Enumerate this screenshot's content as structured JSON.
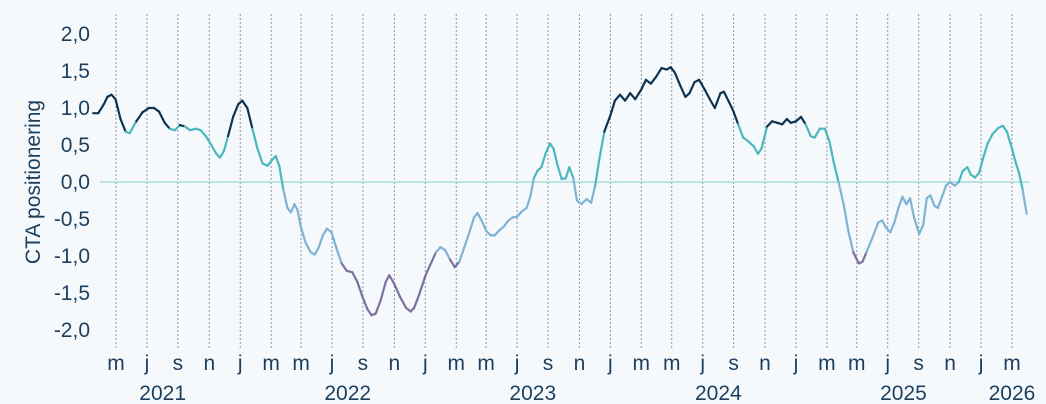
{
  "chart_data": {
    "type": "line",
    "ylabel": "CTA positionering",
    "xlabel": "",
    "ylim": [
      -2.0,
      2.0
    ],
    "y_ticks": [
      "2,0",
      "1,5",
      "1,0",
      "0,5",
      "0,0",
      "-0,5",
      "-1,0",
      "-1,5",
      "-2,0"
    ],
    "month_ticks": [
      {
        "label": "m",
        "date": "2021-03"
      },
      {
        "label": "j",
        "date": "2021-05"
      },
      {
        "label": "s",
        "date": "2021-07"
      },
      {
        "label": "n",
        "date": "2021-09"
      },
      {
        "label": "j",
        "date": "2021-11"
      },
      {
        "label": "m",
        "date": "2022-01"
      },
      {
        "label": "m",
        "date": "2022-03"
      },
      {
        "label": "j",
        "date": "2022-05"
      },
      {
        "label": "s",
        "date": "2022-07"
      },
      {
        "label": "n",
        "date": "2022-09"
      },
      {
        "label": "j",
        "date": "2022-11"
      },
      {
        "label": "m",
        "date": "2023-01"
      },
      {
        "label": "m",
        "date": "2023-03"
      },
      {
        "label": "j",
        "date": "2023-05"
      },
      {
        "label": "s",
        "date": "2023-07"
      },
      {
        "label": "n",
        "date": "2023-09"
      },
      {
        "label": "j",
        "date": "2023-11"
      },
      {
        "label": "m",
        "date": "2024-01"
      },
      {
        "label": "m",
        "date": "2024-03"
      },
      {
        "label": "j",
        "date": "2024-05"
      },
      {
        "label": "s",
        "date": "2024-07"
      },
      {
        "label": "n",
        "date": "2024-09"
      },
      {
        "label": "j",
        "date": "2024-11"
      },
      {
        "label": "m",
        "date": "2025-01"
      },
      {
        "label": "m",
        "date": "2025-03"
      },
      {
        "label": "j",
        "date": "2025-05"
      },
      {
        "label": "s",
        "date": "2025-07"
      },
      {
        "label": "n",
        "date": "2025-09"
      },
      {
        "label": "j",
        "date": "2025-11"
      },
      {
        "label": "m",
        "date": "2026-01"
      }
    ],
    "year_labels": [
      {
        "label": "2021",
        "date": "2021-06"
      },
      {
        "label": "2022",
        "date": "2022-06"
      },
      {
        "label": "2023",
        "date": "2023-06"
      },
      {
        "label": "2024",
        "date": "2024-06"
      },
      {
        "label": "2025",
        "date": "2025-06"
      },
      {
        "label": "2026",
        "date": "2026-01"
      }
    ],
    "x_range": [
      "2021-01-15",
      "2026-01-31"
    ],
    "grid": "vertical dotted at month ticks",
    "zero_line": true,
    "colors": {
      "strong_long": "#0d3350",
      "moderate_long": "#4ab8bd",
      "moderate_short": "#7fb3d6",
      "strong_short": "#7d6fa0",
      "zero_line": "#a8dcdc",
      "grid": "#8a96a3",
      "text": "#1d3f5e"
    },
    "series": [
      {
        "values": [
          [
            "2021-01-15",
            0.93
          ],
          [
            "2021-01-25",
            0.93
          ],
          [
            "2021-02-05",
            1.05
          ],
          [
            "2021-02-12",
            1.15
          ],
          [
            "2021-02-20",
            1.18
          ],
          [
            "2021-02-28",
            1.12
          ],
          [
            "2021-03-10",
            0.85
          ],
          [
            "2021-03-20",
            0.68
          ],
          [
            "2021-03-28",
            0.66
          ],
          [
            "2021-04-10",
            0.82
          ],
          [
            "2021-04-22",
            0.94
          ],
          [
            "2021-05-05",
            1.0
          ],
          [
            "2021-05-15",
            1.0
          ],
          [
            "2021-05-25",
            0.95
          ],
          [
            "2021-06-05",
            0.8
          ],
          [
            "2021-06-15",
            0.72
          ],
          [
            "2021-06-25",
            0.7
          ],
          [
            "2021-07-05",
            0.77
          ],
          [
            "2021-07-15",
            0.75
          ],
          [
            "2021-07-25",
            0.7
          ],
          [
            "2021-08-05",
            0.72
          ],
          [
            "2021-08-15",
            0.7
          ],
          [
            "2021-08-25",
            0.62
          ],
          [
            "2021-09-05",
            0.5
          ],
          [
            "2021-09-15",
            0.38
          ],
          [
            "2021-09-22",
            0.33
          ],
          [
            "2021-09-30",
            0.42
          ],
          [
            "2021-10-08",
            0.62
          ],
          [
            "2021-10-18",
            0.88
          ],
          [
            "2021-10-28",
            1.05
          ],
          [
            "2021-11-05",
            1.1
          ],
          [
            "2021-11-15",
            1.0
          ],
          [
            "2021-11-25",
            0.72
          ],
          [
            "2021-12-05",
            0.45
          ],
          [
            "2021-12-15",
            0.25
          ],
          [
            "2021-12-25",
            0.22
          ],
          [
            "2022-01-03",
            0.3
          ],
          [
            "2022-01-10",
            0.35
          ],
          [
            "2022-01-17",
            0.22
          ],
          [
            "2022-01-25",
            -0.1
          ],
          [
            "2022-02-02",
            -0.35
          ],
          [
            "2022-02-09",
            -0.41
          ],
          [
            "2022-02-16",
            -0.3
          ],
          [
            "2022-02-22",
            -0.38
          ],
          [
            "2022-03-01",
            -0.62
          ],
          [
            "2022-03-10",
            -0.82
          ],
          [
            "2022-03-20",
            -0.95
          ],
          [
            "2022-03-28",
            -0.98
          ],
          [
            "2022-04-05",
            -0.88
          ],
          [
            "2022-04-13",
            -0.72
          ],
          [
            "2022-04-21",
            -0.63
          ],
          [
            "2022-04-30",
            -0.68
          ],
          [
            "2022-05-10",
            -0.9
          ],
          [
            "2022-05-20",
            -1.1
          ],
          [
            "2022-05-30",
            -1.2
          ],
          [
            "2022-06-10",
            -1.22
          ],
          [
            "2022-06-20",
            -1.35
          ],
          [
            "2022-06-30",
            -1.55
          ],
          [
            "2022-07-10",
            -1.72
          ],
          [
            "2022-07-18",
            -1.8
          ],
          [
            "2022-07-26",
            -1.78
          ],
          [
            "2022-08-05",
            -1.6
          ],
          [
            "2022-08-15",
            -1.35
          ],
          [
            "2022-08-22",
            -1.26
          ],
          [
            "2022-09-01",
            -1.38
          ],
          [
            "2022-09-12",
            -1.55
          ],
          [
            "2022-09-24",
            -1.7
          ],
          [
            "2022-10-03",
            -1.75
          ],
          [
            "2022-10-10",
            -1.7
          ],
          [
            "2022-10-20",
            -1.52
          ],
          [
            "2022-11-01",
            -1.27
          ],
          [
            "2022-11-12",
            -1.1
          ],
          [
            "2022-11-22",
            -0.95
          ],
          [
            "2022-12-01",
            -0.88
          ],
          [
            "2022-12-10",
            -0.92
          ],
          [
            "2022-12-20",
            -1.05
          ],
          [
            "2022-12-29",
            -1.15
          ],
          [
            "2023-01-07",
            -1.08
          ],
          [
            "2023-01-16",
            -0.9
          ],
          [
            "2023-01-26",
            -0.7
          ],
          [
            "2023-02-05",
            -0.48
          ],
          [
            "2023-02-12",
            -0.42
          ],
          [
            "2023-02-20",
            -0.52
          ],
          [
            "2023-03-01",
            -0.66
          ],
          [
            "2023-03-10",
            -0.72
          ],
          [
            "2023-03-18",
            -0.72
          ],
          [
            "2023-03-26",
            -0.66
          ],
          [
            "2023-04-05",
            -0.6
          ],
          [
            "2023-04-14",
            -0.52
          ],
          [
            "2023-04-22",
            -0.48
          ],
          [
            "2023-05-01",
            -0.47
          ],
          [
            "2023-05-10",
            -0.4
          ],
          [
            "2023-05-20",
            -0.35
          ],
          [
            "2023-05-27",
            -0.2
          ],
          [
            "2023-06-03",
            0.05
          ],
          [
            "2023-06-10",
            0.15
          ],
          [
            "2023-06-18",
            0.2
          ],
          [
            "2023-06-26",
            0.38
          ],
          [
            "2023-07-05",
            0.52
          ],
          [
            "2023-07-12",
            0.45
          ],
          [
            "2023-07-20",
            0.22
          ],
          [
            "2023-07-28",
            0.04
          ],
          [
            "2023-08-05",
            0.05
          ],
          [
            "2023-08-12",
            0.2
          ],
          [
            "2023-08-20",
            0.05
          ],
          [
            "2023-08-27",
            -0.25
          ],
          [
            "2023-09-05",
            -0.3
          ],
          [
            "2023-09-15",
            -0.23
          ],
          [
            "2023-09-24",
            -0.28
          ],
          [
            "2023-10-02",
            -0.05
          ],
          [
            "2023-10-10",
            0.3
          ],
          [
            "2023-10-20",
            0.68
          ],
          [
            "2023-11-01",
            0.9
          ],
          [
            "2023-11-10",
            1.1
          ],
          [
            "2023-11-20",
            1.18
          ],
          [
            "2023-11-30",
            1.1
          ],
          [
            "2023-12-10",
            1.2
          ],
          [
            "2023-12-20",
            1.12
          ],
          [
            "2024-01-01",
            1.25
          ],
          [
            "2024-01-10",
            1.38
          ],
          [
            "2024-01-20",
            1.33
          ],
          [
            "2024-01-30",
            1.42
          ],
          [
            "2024-02-10",
            1.54
          ],
          [
            "2024-02-20",
            1.52
          ],
          [
            "2024-02-28",
            1.55
          ],
          [
            "2024-03-07",
            1.48
          ],
          [
            "2024-03-18",
            1.3
          ],
          [
            "2024-03-28",
            1.15
          ],
          [
            "2024-04-05",
            1.2
          ],
          [
            "2024-04-15",
            1.35
          ],
          [
            "2024-04-24",
            1.38
          ],
          [
            "2024-05-05",
            1.25
          ],
          [
            "2024-05-15",
            1.12
          ],
          [
            "2024-05-25",
            1.0
          ],
          [
            "2024-06-05",
            1.2
          ],
          [
            "2024-06-12",
            1.22
          ],
          [
            "2024-06-22",
            1.08
          ],
          [
            "2024-07-01",
            0.95
          ],
          [
            "2024-07-10",
            0.78
          ],
          [
            "2024-07-20",
            0.6
          ],
          [
            "2024-07-30",
            0.55
          ],
          [
            "2024-08-10",
            0.48
          ],
          [
            "2024-08-18",
            0.38
          ],
          [
            "2024-08-25",
            0.45
          ],
          [
            "2024-09-05",
            0.75
          ],
          [
            "2024-09-15",
            0.82
          ],
          [
            "2024-09-25",
            0.8
          ],
          [
            "2024-10-05",
            0.78
          ],
          [
            "2024-10-14",
            0.85
          ],
          [
            "2024-10-22",
            0.8
          ],
          [
            "2024-11-01",
            0.82
          ],
          [
            "2024-11-11",
            0.88
          ],
          [
            "2024-11-20",
            0.78
          ],
          [
            "2024-11-30",
            0.62
          ],
          [
            "2024-12-08",
            0.6
          ],
          [
            "2024-12-18",
            0.72
          ],
          [
            "2024-12-28",
            0.72
          ],
          [
            "2025-01-06",
            0.55
          ],
          [
            "2025-01-15",
            0.25
          ],
          [
            "2025-01-24",
            0.0
          ],
          [
            "2025-02-03",
            -0.3
          ],
          [
            "2025-02-12",
            -0.65
          ],
          [
            "2025-02-22",
            -0.95
          ],
          [
            "2025-03-05",
            -1.1
          ],
          [
            "2025-03-12",
            -1.08
          ],
          [
            "2025-03-20",
            -0.95
          ],
          [
            "2025-04-01",
            -0.75
          ],
          [
            "2025-04-12",
            -0.55
          ],
          [
            "2025-04-20",
            -0.52
          ],
          [
            "2025-04-28",
            -0.62
          ],
          [
            "2025-05-06",
            -0.68
          ],
          [
            "2025-05-14",
            -0.55
          ],
          [
            "2025-05-22",
            -0.35
          ],
          [
            "2025-05-30",
            -0.2
          ],
          [
            "2025-06-07",
            -0.3
          ],
          [
            "2025-06-14",
            -0.22
          ],
          [
            "2025-06-22",
            -0.48
          ],
          [
            "2025-07-02",
            -0.7
          ],
          [
            "2025-07-10",
            -0.58
          ],
          [
            "2025-07-17",
            -0.22
          ],
          [
            "2025-07-24",
            -0.18
          ],
          [
            "2025-08-01",
            -0.32
          ],
          [
            "2025-08-08",
            -0.35
          ],
          [
            "2025-08-16",
            -0.2
          ],
          [
            "2025-08-24",
            -0.05
          ],
          [
            "2025-09-01",
            0.0
          ],
          [
            "2025-09-10",
            -0.05
          ],
          [
            "2025-09-18",
            0.0
          ],
          [
            "2025-09-26",
            0.15
          ],
          [
            "2025-10-05",
            0.2
          ],
          [
            "2025-10-12",
            0.1
          ],
          [
            "2025-10-20",
            0.06
          ],
          [
            "2025-10-28",
            0.12
          ],
          [
            "2025-11-05",
            0.32
          ],
          [
            "2025-11-14",
            0.52
          ],
          [
            "2025-11-24",
            0.65
          ],
          [
            "2025-12-05",
            0.73
          ],
          [
            "2025-12-14",
            0.76
          ],
          [
            "2025-12-22",
            0.68
          ],
          [
            "2026-01-01",
            0.45
          ],
          [
            "2026-01-09",
            0.25
          ],
          [
            "2026-01-15",
            0.12
          ],
          [
            "2026-01-22",
            -0.1
          ],
          [
            "2026-01-30",
            -0.43
          ]
        ]
      }
    ]
  }
}
